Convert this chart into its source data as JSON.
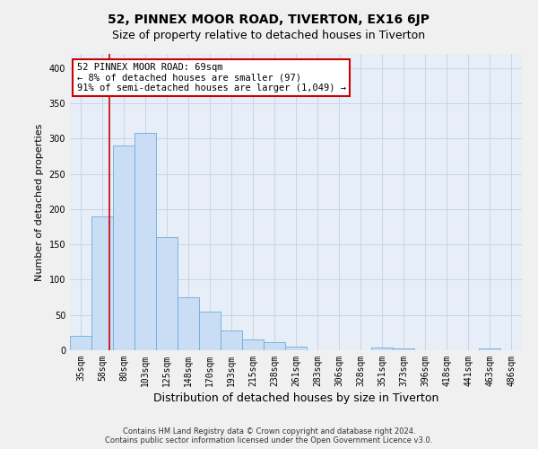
{
  "title": "52, PINNEX MOOR ROAD, TIVERTON, EX16 6JP",
  "subtitle": "Size of property relative to detached houses in Tiverton",
  "xlabel": "Distribution of detached houses by size in Tiverton",
  "ylabel": "Number of detached properties",
  "footer_line1": "Contains HM Land Registry data © Crown copyright and database right 2024.",
  "footer_line2": "Contains public sector information licensed under the Open Government Licence v3.0.",
  "bin_labels": [
    "35sqm",
    "58sqm",
    "80sqm",
    "103sqm",
    "125sqm",
    "148sqm",
    "170sqm",
    "193sqm",
    "215sqm",
    "238sqm",
    "261sqm",
    "283sqm",
    "306sqm",
    "328sqm",
    "351sqm",
    "373sqm",
    "396sqm",
    "418sqm",
    "441sqm",
    "463sqm",
    "486sqm"
  ],
  "bar_values": [
    20,
    190,
    290,
    308,
    160,
    75,
    55,
    28,
    15,
    12,
    5,
    0,
    0,
    0,
    4,
    3,
    0,
    0,
    0,
    3,
    0
  ],
  "bar_color": "#c9ddf5",
  "bar_edge_color": "#6baed6",
  "annotation_line1": "52 PINNEX MOOR ROAD: 69sqm",
  "annotation_line2": "← 8% of detached houses are smaller (97)",
  "annotation_line3": "91% of semi-detached houses are larger (1,049) →",
  "annotation_box_facecolor": "#ffffff",
  "annotation_box_edgecolor": "#cc0000",
  "red_line_x": 1.35,
  "ylim_max": 420,
  "yticks": [
    0,
    50,
    100,
    150,
    200,
    250,
    300,
    350,
    400
  ],
  "grid_color": "#c8d4e8",
  "fig_facecolor": "#f0f0f0",
  "plot_facecolor": "#e8eef8",
  "title_fontsize": 10,
  "subtitle_fontsize": 9,
  "tick_fontsize": 7,
  "ylabel_fontsize": 8,
  "xlabel_fontsize": 9,
  "annot_fontsize": 7.5,
  "footer_fontsize": 6
}
